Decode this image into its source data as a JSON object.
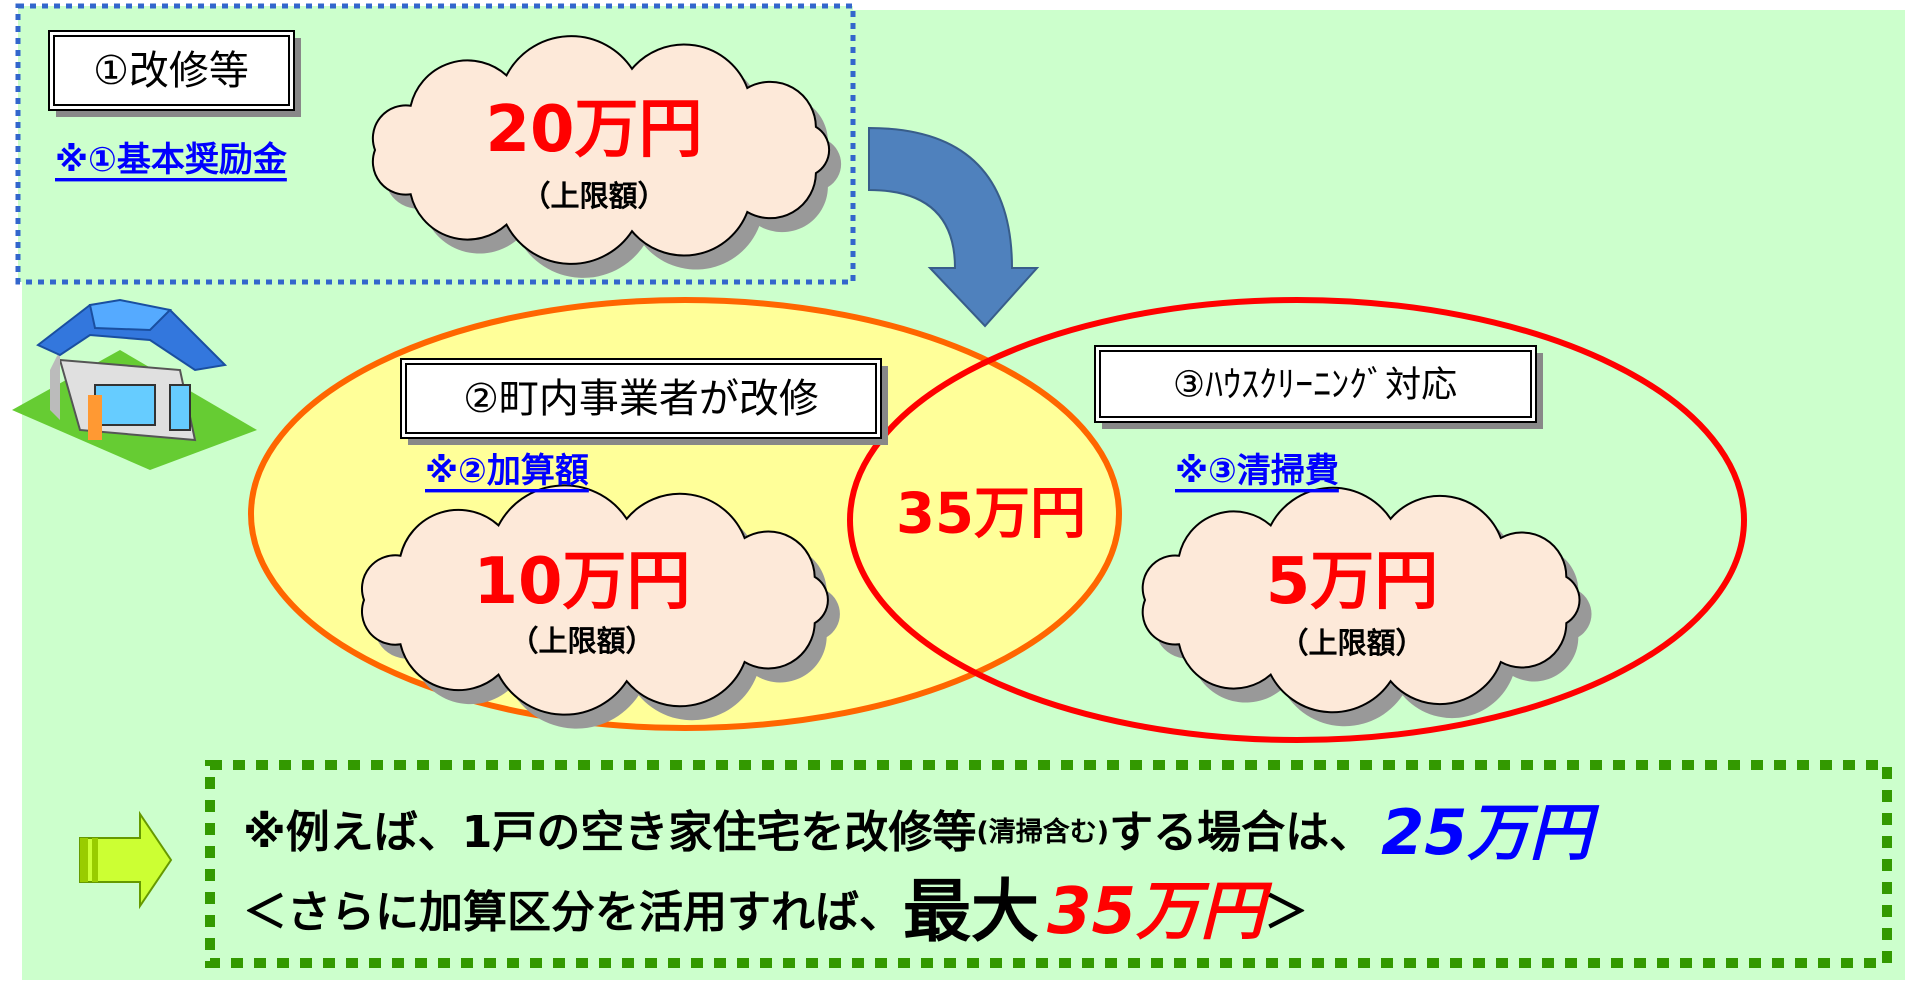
{
  "step1": {
    "label": "①改修等",
    "link": "※①基本奨励金",
    "amount": "20万円",
    "note": "（上限額）"
  },
  "step2": {
    "label": "②町内事業者が改修",
    "link": "※②加算額",
    "amount": "10万円",
    "note": "（上限額）"
  },
  "step3": {
    "label": "③ﾊｳｽｸﾘｰﾆﾝｸﾞ対応",
    "link": "※③清掃費",
    "amount": "5万円",
    "note": "（上限額）"
  },
  "overlap_total": "35万円",
  "example": {
    "line1": [
      "※例えば、1戸の空き家住宅を改修等",
      "(清掃含む)",
      "する場合は、",
      "25万円"
    ],
    "line2": [
      "＜さらに加算区分を活用すれば、",
      "最大",
      "35万円",
      "＞"
    ]
  }
}
